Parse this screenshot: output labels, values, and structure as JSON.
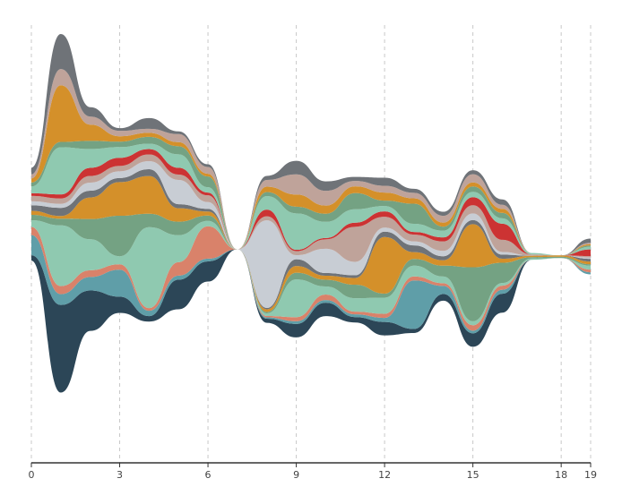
{
  "chart_data": {
    "type": "area",
    "subtype": "streamgraph",
    "offset": "wiggle",
    "curve": "smooth",
    "xlim": [
      0,
      19
    ],
    "x": [
      0,
      1,
      2,
      3,
      4,
      5,
      6,
      7,
      8,
      9,
      10,
      11,
      12,
      13,
      14,
      15,
      16,
      17,
      18,
      19
    ],
    "ticks": [
      0,
      3,
      6,
      9,
      12,
      15,
      18,
      19
    ],
    "grid": "vertical-dashed",
    "legend": "none",
    "series": [
      {
        "color": "#2c4657",
        "values": [
          0.4,
          6.5,
          3.0,
          1.2,
          0.4,
          2.2,
          1.5,
          0,
          0.3,
          1.0,
          1.0,
          0.4,
          1.0,
          0.3,
          0.5,
          1.0,
          1.4,
          0,
          0,
          0
        ]
      },
      {
        "color": "#5f9ea8",
        "values": [
          1.5,
          0.8,
          1.0,
          2.0,
          0.4,
          0.3,
          0.2,
          0,
          0.1,
          0.2,
          0.2,
          0.2,
          0.3,
          3.6,
          0.6,
          0.2,
          0.3,
          0,
          0,
          0.15
        ]
      },
      {
        "color": "#d9826a",
        "values": [
          0.6,
          0.6,
          0.5,
          0.4,
          0.2,
          1.0,
          2.4,
          0,
          0.1,
          0.3,
          0.4,
          0.2,
          0.3,
          0.3,
          0.2,
          0.4,
          0.3,
          0,
          0,
          0.2
        ]
      },
      {
        "color": "#8fc9b0",
        "values": [
          0.5,
          4.5,
          2.3,
          0.6,
          6.0,
          2.0,
          0.4,
          0,
          0.2,
          2.8,
          0.6,
          1.0,
          1.2,
          0.8,
          0.5,
          0.3,
          0.2,
          0.1,
          0,
          0.3
        ]
      },
      {
        "color": "#74a283",
        "values": [
          0.4,
          0.5,
          1.5,
          3.0,
          1.0,
          1.0,
          0.4,
          0,
          0.1,
          0.5,
          0.5,
          1.0,
          0.3,
          0.5,
          0.8,
          4.0,
          1.5,
          0.1,
          0.1,
          0.1
        ]
      },
      {
        "color": "#d4902a",
        "values": [
          0.3,
          0.2,
          1.6,
          2.5,
          2.8,
          1.0,
          0.3,
          0,
          0.2,
          0.5,
          0.3,
          0.5,
          4.2,
          0.5,
          0.4,
          3.2,
          0.3,
          0.1,
          0.1,
          0.2
        ]
      },
      {
        "color": "#6f7378",
        "values": [
          0.4,
          0.6,
          0.5,
          0.3,
          0.5,
          0.3,
          0.2,
          0,
          0.1,
          0.5,
          0.2,
          0.2,
          0.4,
          0.5,
          0.3,
          0.3,
          0.3,
          0,
          0,
          0.2
        ]
      },
      {
        "color": "#c8cdd4",
        "values": [
          0.3,
          0.3,
          0.6,
          0.5,
          0.6,
          1.8,
          0.5,
          0,
          6.5,
          0.3,
          1.8,
          1.0,
          0.3,
          0.3,
          0.4,
          0.5,
          0.2,
          0,
          0,
          0.1
        ]
      },
      {
        "color": "#bfa39a",
        "values": [
          0.4,
          0.4,
          0.5,
          0.4,
          0.5,
          0.4,
          0.5,
          0,
          0.3,
          0.3,
          0.7,
          2.6,
          0.8,
          0.5,
          0.7,
          0.6,
          0.9,
          0.1,
          0,
          0.1
        ]
      },
      {
        "color": "#cc3333",
        "values": [
          0.2,
          0.3,
          0.6,
          0.6,
          0.4,
          0.5,
          0.2,
          0,
          0.5,
          0.1,
          0.1,
          0.3,
          0.4,
          0.2,
          0.3,
          0.6,
          1.2,
          0,
          0,
          0.5
        ]
      },
      {
        "color": "#8fc9b0",
        "values": [
          0.5,
          3.5,
          1.4,
          0.8,
          0.4,
          1.0,
          0.4,
          0,
          1.0,
          2.7,
          1.2,
          1.0,
          0.4,
          0.6,
          0.5,
          0.4,
          0.4,
          0.1,
          0,
          0.2
        ]
      },
      {
        "color": "#74a283",
        "values": [
          0.3,
          0.4,
          0.6,
          0.4,
          0.5,
          0.6,
          0.8,
          0,
          0.3,
          0.5,
          0.6,
          1.2,
          0.4,
          1.5,
          0.3,
          0.4,
          0.4,
          0,
          0,
          0.1
        ]
      },
      {
        "color": "#d4902a",
        "values": [
          0.3,
          4.2,
          1.2,
          0.4,
          0.3,
          0.3,
          0.2,
          0,
          0.4,
          0.9,
          0.6,
          0.5,
          0.6,
          0.4,
          0.3,
          0.3,
          0.3,
          0,
          0,
          0.1
        ]
      },
      {
        "color": "#bfa39a",
        "values": [
          0.3,
          1.2,
          0.6,
          0.4,
          0.3,
          0.6,
          0.5,
          0,
          0.5,
          1.5,
          1.1,
          0.4,
          0.5,
          0.4,
          0.5,
          0.6,
          0.3,
          0,
          0,
          0.1
        ]
      },
      {
        "color": "#6f7378",
        "values": [
          0.5,
          2.6,
          0.7,
          0.2,
          0.8,
          0.2,
          0.2,
          0,
          0.3,
          1.0,
          0.7,
          0.3,
          0.6,
          0.3,
          0.3,
          0.3,
          0.4,
          0,
          0,
          0.3
        ]
      }
    ]
  }
}
